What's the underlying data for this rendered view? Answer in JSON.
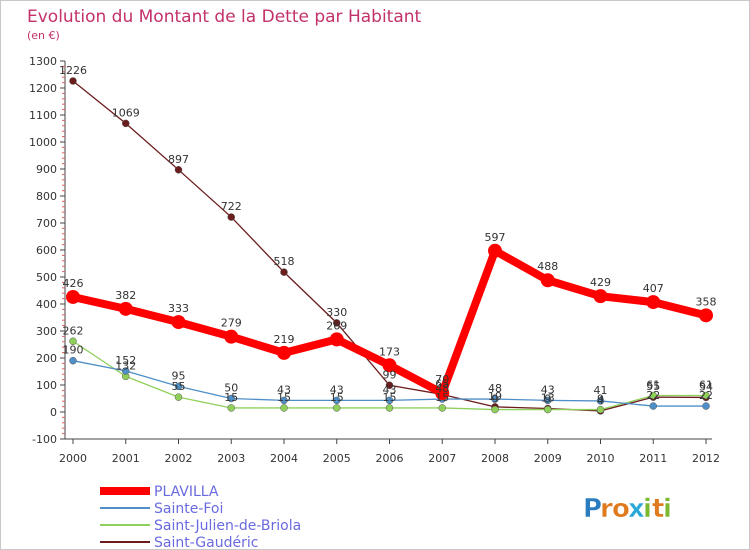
{
  "title": "Evolution du Montant de la Dette par Habitant",
  "subtitle": "(en €)",
  "logo": {
    "text": "Proxiti",
    "letters": [
      "P",
      "r",
      "o",
      "x",
      "i",
      "t",
      "i"
    ],
    "letter_colors": [
      "#2b7bbf",
      "#e07a1f",
      "#e07a1f",
      "#2aa8d8",
      "#7cb92f",
      "#e07a1f",
      "#7cb92f"
    ]
  },
  "chart_data": {
    "type": "line",
    "title": "Evolution du Montant de la Dette par Habitant",
    "subtitle": "(en €)",
    "x": [
      "2000",
      "2001",
      "2002",
      "2003",
      "2004",
      "2005",
      "2006",
      "2007",
      "2008",
      "2009",
      "2010",
      "2011",
      "2012"
    ],
    "ylim": [
      -100,
      1300
    ],
    "yticks": [
      -100,
      0,
      100,
      200,
      300,
      400,
      500,
      600,
      700,
      800,
      900,
      1000,
      1100,
      1200,
      1300
    ],
    "grid": false,
    "legend_position": "bottom-left",
    "series": [
      {
        "name": "PLAVILLA",
        "color": "#ff0000",
        "values": [
          426,
          382,
          333,
          279,
          219,
          269,
          173,
          70,
          597,
          488,
          429,
          407,
          358
        ],
        "labels": [
          "426",
          "382",
          "333",
          "279",
          "219",
          "269",
          "173",
          "70",
          "597",
          "488",
          "429",
          "407",
          "358"
        ]
      },
      {
        "name": "Sainte-Foi",
        "color": "#4f8fc7",
        "values": [
          190,
          152,
          95,
          50,
          43,
          43,
          43,
          48,
          48,
          43,
          41,
          22,
          22
        ],
        "labels": [
          "190",
          "152",
          "95",
          "50",
          "43",
          "43",
          "43",
          "48",
          "48",
          "43",
          "41",
          "22",
          "22"
        ]
      },
      {
        "name": "Saint-Julien-de-Briola",
        "color": "#8fd05a",
        "values": [
          262,
          132,
          55,
          15,
          15,
          15,
          15,
          15,
          9,
          9,
          9,
          61,
          61
        ],
        "labels": [
          "262",
          "132",
          "55",
          "15",
          "15",
          "15",
          "15",
          "15",
          "9",
          "9",
          "9",
          "61",
          "61"
        ]
      },
      {
        "name": "Saint-Gaudéric",
        "color": "#6b1c1c",
        "values": [
          1226,
          1069,
          897,
          722,
          518,
          330,
          99,
          65,
          19,
          13,
          4,
          55,
          54
        ],
        "labels": [
          "1226",
          "1069",
          "897",
          "722",
          "518",
          "330",
          "99",
          "65",
          "19",
          "13",
          "4",
          "55",
          "54"
        ]
      }
    ]
  }
}
